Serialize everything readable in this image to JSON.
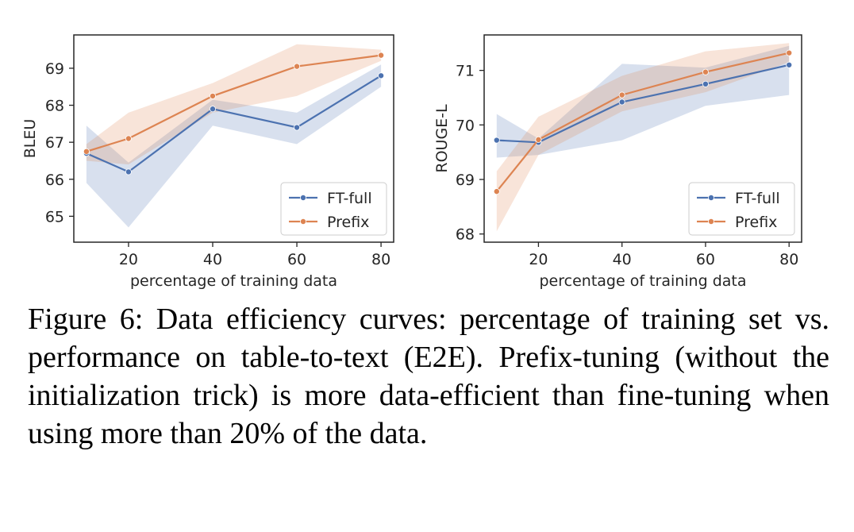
{
  "chart_data": [
    {
      "type": "line",
      "title": "",
      "xlabel": "percentage of training data",
      "ylabel": "BLEU",
      "xlim": [
        7,
        83
      ],
      "ylim": [
        64.3,
        69.9
      ],
      "xticks": [
        20,
        40,
        60,
        80
      ],
      "yticks": [
        65,
        66,
        67,
        68,
        69
      ],
      "grid": false,
      "legend_position": "lower-right",
      "series": [
        {
          "name": "FT-full",
          "color": "#4c72b0",
          "x": [
            10,
            20,
            40,
            60,
            80
          ],
          "y": [
            66.7,
            66.2,
            67.9,
            67.4,
            68.8
          ],
          "ci_low": [
            65.9,
            64.7,
            67.45,
            66.95,
            68.5
          ],
          "ci_high": [
            67.45,
            66.45,
            68.15,
            67.8,
            69.1
          ]
        },
        {
          "name": "Prefix",
          "color": "#dd8452",
          "x": [
            10,
            20,
            40,
            60,
            80
          ],
          "y": [
            66.75,
            67.1,
            68.25,
            69.05,
            69.35
          ],
          "ci_low": [
            66.5,
            66.4,
            67.8,
            68.25,
            69.2
          ],
          "ci_high": [
            66.95,
            67.8,
            68.6,
            69.65,
            69.5
          ]
        }
      ]
    },
    {
      "type": "line",
      "title": "",
      "xlabel": "percentage of training data",
      "ylabel": "ROUGE-L",
      "xlim": [
        7,
        83
      ],
      "ylim": [
        67.85,
        71.65
      ],
      "xticks": [
        20,
        40,
        60,
        80
      ],
      "yticks": [
        68,
        69,
        70,
        71
      ],
      "grid": false,
      "legend_position": "lower-right",
      "series": [
        {
          "name": "FT-full",
          "color": "#4c72b0",
          "x": [
            10,
            20,
            40,
            60,
            80
          ],
          "y": [
            69.72,
            69.68,
            70.42,
            70.75,
            71.1
          ],
          "ci_low": [
            69.4,
            69.45,
            69.72,
            70.35,
            70.55
          ],
          "ci_high": [
            70.2,
            69.75,
            71.12,
            71.05,
            71.45
          ]
        },
        {
          "name": "Prefix",
          "color": "#dd8452",
          "x": [
            10,
            20,
            40,
            60,
            80
          ],
          "y": [
            68.78,
            69.73,
            70.55,
            70.97,
            71.32
          ],
          "ci_low": [
            68.05,
            69.45,
            70.25,
            70.6,
            71.15
          ],
          "ci_high": [
            69.15,
            70.15,
            70.9,
            71.35,
            71.5
          ]
        }
      ]
    }
  ],
  "caption": "Figure 6:  Data efficiency curves: percentage of training set vs. performance on table-to-text (E2E). Prefix-tuning (without the initialization trick) is more data-efficient than fine-tuning when using more than 20% of the data."
}
